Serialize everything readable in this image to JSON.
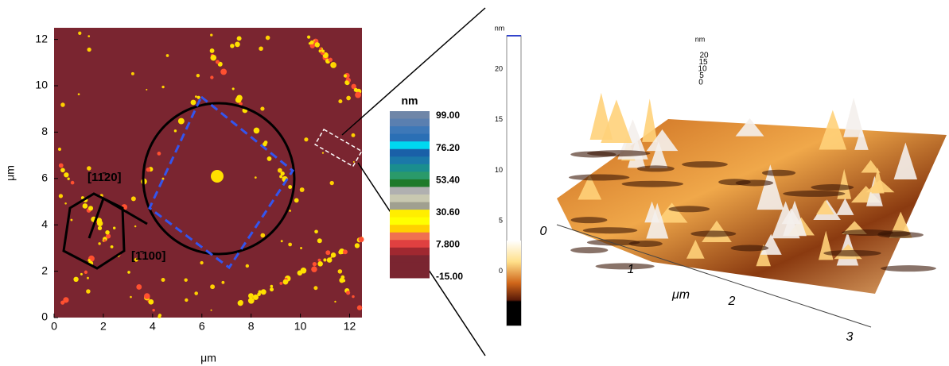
{
  "map": {
    "x_ticks": [
      "0",
      "2",
      "4",
      "6",
      "8",
      "10",
      "12"
    ],
    "y_ticks": [
      "0",
      "2",
      "4",
      "6",
      "8",
      "10",
      "12"
    ],
    "x_label": "μm",
    "y_label": "μm",
    "direction_a": "[11̄20]",
    "direction_b": "[1̄100]"
  },
  "colorbar": {
    "unit": "nm",
    "labels": [
      "99.00",
      "76.20",
      "53.40",
      "30.60",
      "7.800",
      "-15.00"
    ]
  },
  "surface": {
    "bar_unit": "nm",
    "bar_ticks": [
      "20",
      "15",
      "10",
      "5",
      "0"
    ],
    "z_unit": "nm",
    "z_ticks": [
      "20",
      "15",
      "10",
      "5",
      "0"
    ],
    "axis_ticks": [
      "0",
      "1",
      "2",
      "3"
    ],
    "axis_label": "μm"
  }
}
